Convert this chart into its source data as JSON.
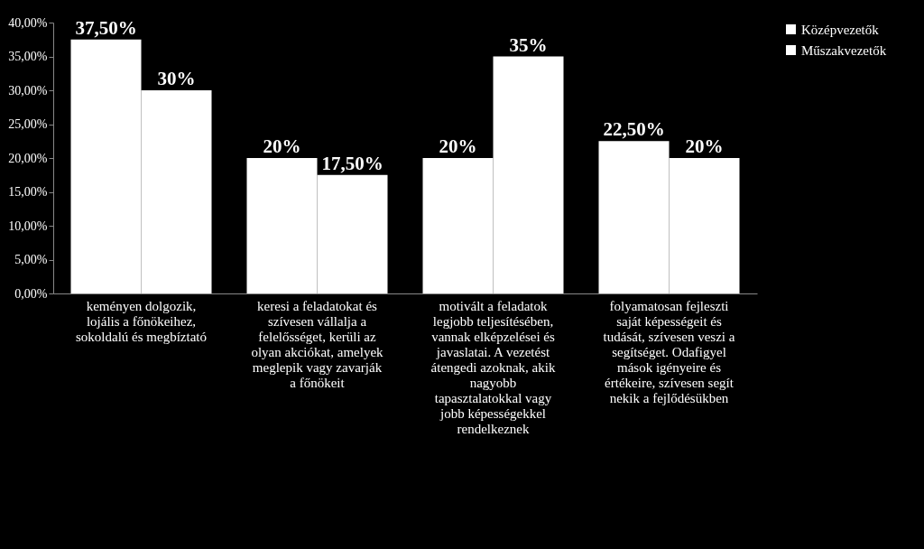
{
  "chart_data": {
    "type": "bar",
    "categories": [
      "keményen dolgozik, lojális a főnökeihez, sokoldalú és megbíztató",
      "keresi a feladatokat és szívesen vállalja a felelősséget, kerüli az olyan akciókat, amelyek meglepik vagy zavarják a főnökeit",
      "motivált a feladatok legjobb teljesítésében, vannak elképzelései és javaslatai. A vezetést átengedi azoknak, akik nagyobb tapasztalatokkal vagy jobb képességekkel rendelkeznek",
      "folyamatosan fejleszti saját képességeit és tudását, szívesen veszi a segítséget. Odafigyel mások igényeire és értékeire, szívesen segít nekik a fejlődésükben"
    ],
    "series": [
      {
        "name": "Középvezetők",
        "color": "#ffffff",
        "values": [
          37.5,
          20,
          20,
          22.5
        ],
        "value_labels": [
          "37,50%",
          "20%",
          "20%",
          "22,50%"
        ]
      },
      {
        "name": "Műszakvezetők",
        "color": "#ffffff",
        "values": [
          30,
          17.5,
          35,
          20
        ],
        "value_labels": [
          "30%",
          "17,50%",
          "35%",
          "20%"
        ]
      }
    ],
    "ylim": [
      0,
      40
    ],
    "yticks": [
      {
        "value": 0,
        "label": "0,00%"
      },
      {
        "value": 5,
        "label": "5,00%"
      },
      {
        "value": 10,
        "label": "10,00%"
      },
      {
        "value": 15,
        "label": "15,00%"
      },
      {
        "value": 20,
        "label": "20,00%"
      },
      {
        "value": 25,
        "label": "25,00%"
      },
      {
        "value": 30,
        "label": "30,00%"
      },
      {
        "value": 35,
        "label": "35,00%"
      },
      {
        "value": 40,
        "label": "40,00%"
      }
    ],
    "grid": false,
    "legend": "top right"
  }
}
